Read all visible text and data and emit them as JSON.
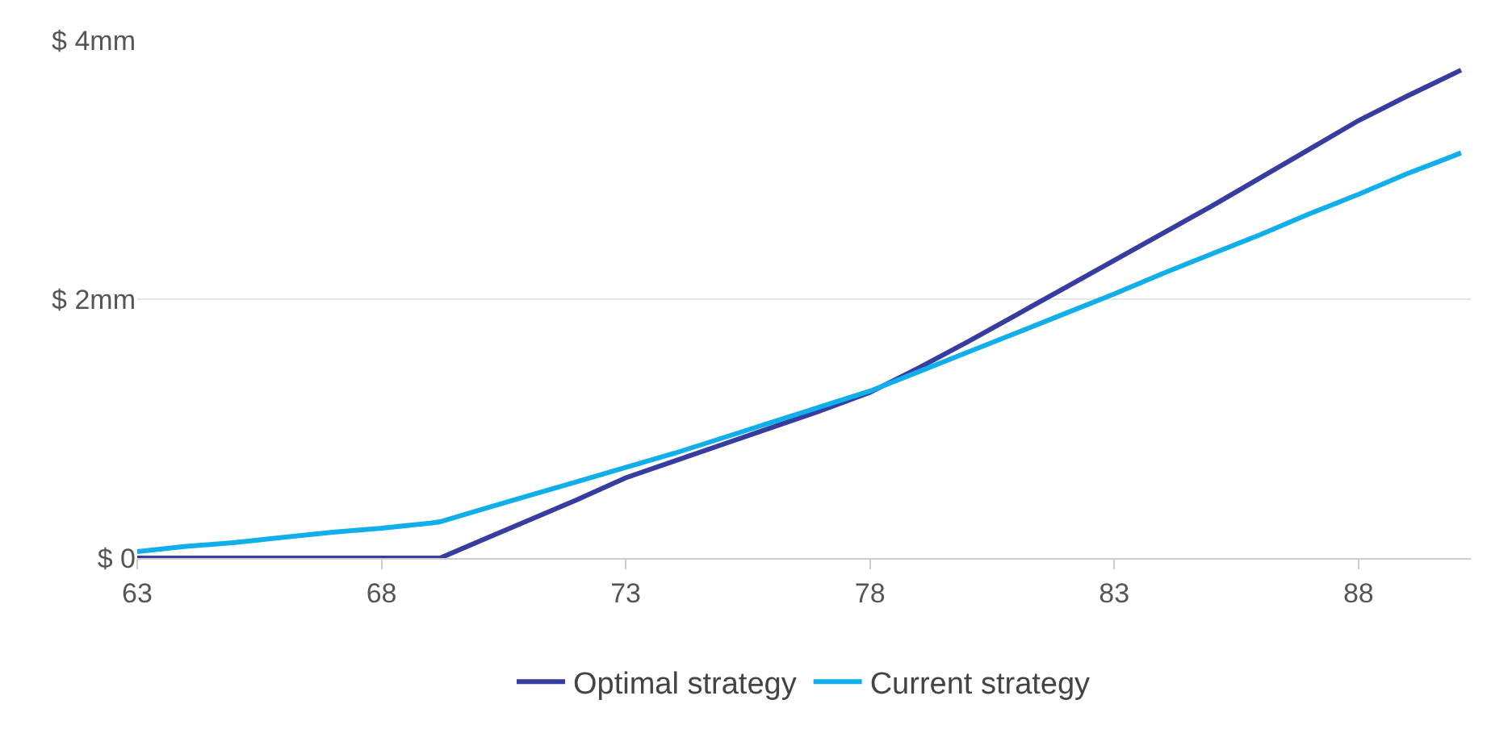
{
  "chart_data": {
    "type": "line",
    "x": [
      63,
      64,
      65,
      66,
      67,
      68,
      69,
      69.2,
      70,
      71,
      72,
      73,
      74,
      75,
      76,
      77,
      78,
      79,
      80,
      81,
      82,
      83,
      84,
      85,
      86,
      87,
      88,
      89,
      90.1
    ],
    "series": [
      {
        "name": "Optimal strategy",
        "color": "#373ca0",
        "values": [
          0,
          0,
          0,
          0,
          0,
          0,
          0,
          0,
          0.13,
          0.29,
          0.45,
          0.62,
          0.75,
          0.88,
          1.01,
          1.14,
          1.28,
          1.47,
          1.67,
          1.88,
          2.09,
          2.3,
          2.51,
          2.72,
          2.94,
          3.16,
          3.38,
          3.57,
          3.77
        ]
      },
      {
        "name": "Current strategy",
        "color": "#10aeea",
        "values": [
          0.05,
          0.09,
          0.12,
          0.16,
          0.2,
          0.23,
          0.27,
          0.28,
          0.37,
          0.48,
          0.59,
          0.7,
          0.81,
          0.93,
          1.05,
          1.17,
          1.29,
          1.44,
          1.59,
          1.74,
          1.89,
          2.04,
          2.2,
          2.35,
          2.5,
          2.66,
          2.81,
          2.97,
          3.13
        ]
      }
    ],
    "xlim": [
      63,
      90.3
    ],
    "xticks": [
      63,
      68,
      73,
      78,
      83,
      88
    ],
    "ylim": [
      0,
      4
    ],
    "yticks": [
      {
        "value": 0,
        "label": "$ 0"
      },
      {
        "value": 2,
        "label": "$ 2mm"
      },
      {
        "value": 4,
        "label": "$ 4mm"
      }
    ],
    "grid": "y",
    "legend": "bottom",
    "marker": "none",
    "line_style": "solid"
  }
}
